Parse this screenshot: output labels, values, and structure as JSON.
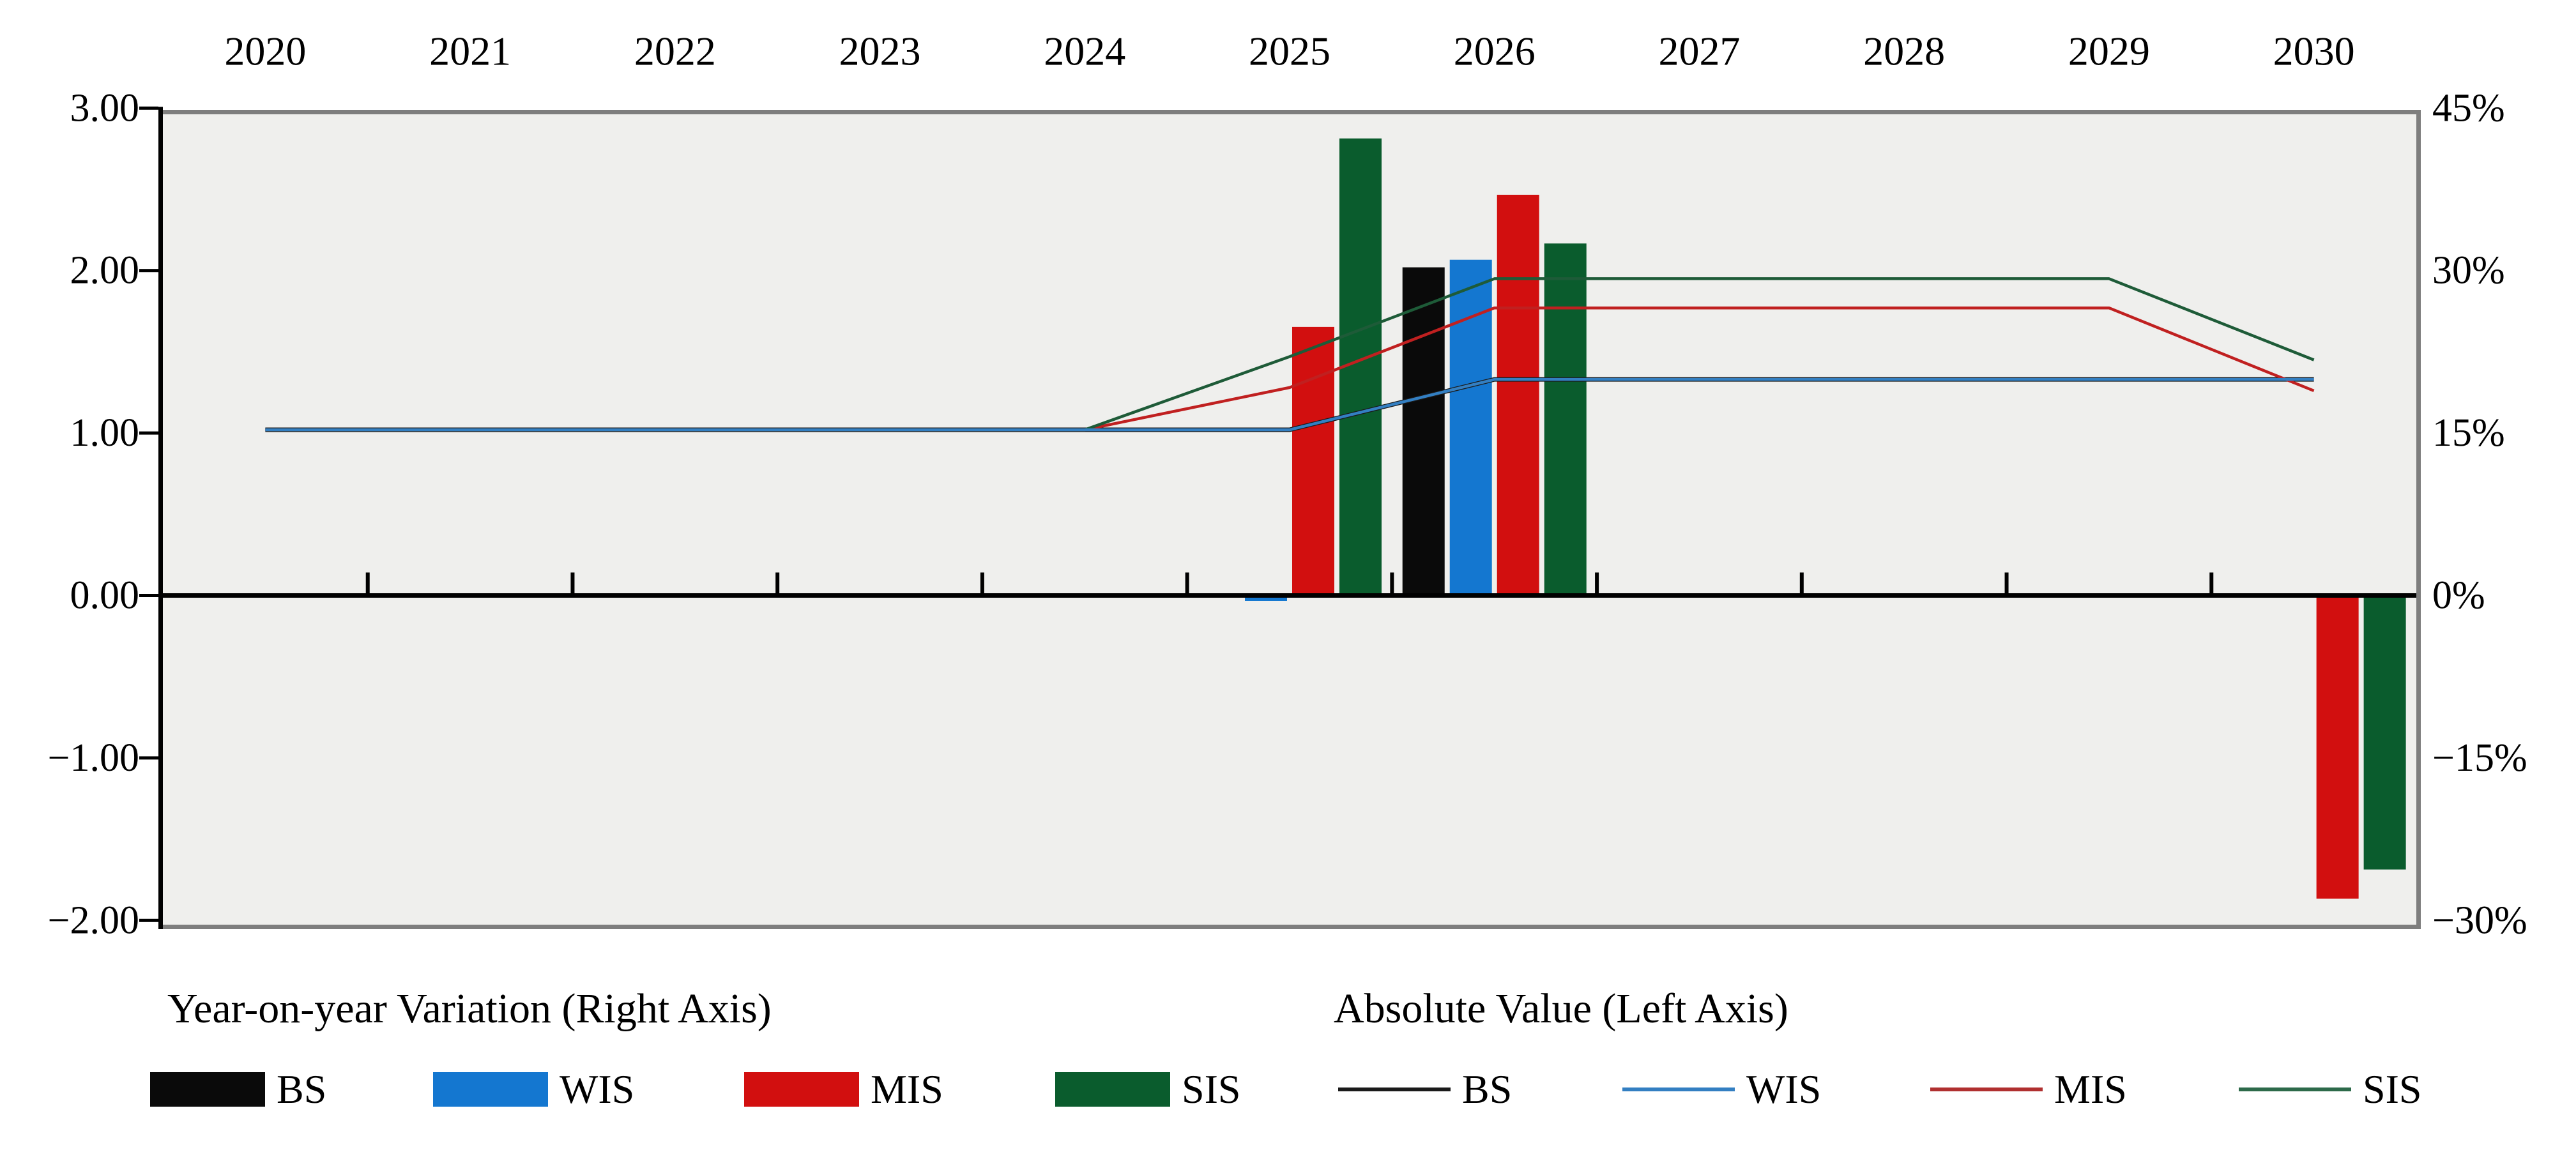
{
  "chart_data": {
    "type": "combo-bar-line-dual-axis",
    "categories": [
      "2020",
      "2021",
      "2022",
      "2023",
      "2024",
      "2025",
      "2026",
      "2027",
      "2028",
      "2029",
      "2030"
    ],
    "left_axis": {
      "title": "Absolute Value",
      "tick_labels": [
        "3.00",
        "2.00",
        "1.00",
        "0.00",
        "−1.00",
        "−2.00"
      ],
      "tick_values": [
        3,
        2,
        1,
        0,
        -1,
        -2
      ],
      "min": -2,
      "max": 3
    },
    "right_axis": {
      "title": "Year-on-year Variation",
      "tick_labels": [
        "45%",
        "30%",
        "15%",
        "0%",
        "−15%",
        "−30%"
      ],
      "tick_values": [
        45,
        30,
        15,
        0,
        -15,
        -30
      ],
      "min": -30,
      "max": 45
    },
    "x_axis": {
      "labels_position": "top",
      "zero_line": true,
      "ticks_at_slot_boundaries": true
    },
    "grid": false,
    "plot_bg": "#efefed",
    "border_color": "#7e7e7e",
    "bar_series": [
      {
        "name": "BS",
        "color": "#0a0a0a",
        "axis": "right",
        "values": [
          null,
          null,
          null,
          null,
          null,
          null,
          30.3,
          null,
          null,
          null,
          null
        ]
      },
      {
        "name": "WIS",
        "color": "#1477d0",
        "axis": "right",
        "values": [
          null,
          null,
          null,
          null,
          null,
          -0.5,
          31.0,
          null,
          null,
          null,
          null
        ]
      },
      {
        "name": "MIS",
        "color": "#d20f0f",
        "axis": "right",
        "values": [
          null,
          null,
          null,
          null,
          null,
          24.8,
          37.0,
          null,
          null,
          null,
          -28.0
        ]
      },
      {
        "name": "SIS",
        "color": "#0a5c2d",
        "axis": "right",
        "values": [
          null,
          null,
          null,
          null,
          null,
          42.2,
          32.5,
          null,
          null,
          null,
          -25.3
        ]
      }
    ],
    "line_series": [
      {
        "name": "BS",
        "color": "#1a1a1a",
        "width": 7,
        "axis": "left",
        "values": [
          1.02,
          1.02,
          1.02,
          1.02,
          1.02,
          1.02,
          1.33,
          1.33,
          1.33,
          1.33,
          1.33
        ]
      },
      {
        "name": "MIS",
        "color": "#c02020",
        "width": 4.5,
        "axis": "left",
        "values": [
          1.02,
          1.02,
          1.02,
          1.02,
          1.02,
          1.28,
          1.77,
          1.77,
          1.77,
          1.77,
          1.26
        ]
      },
      {
        "name": "SIS",
        "color": "#1e5b38",
        "width": 4.5,
        "axis": "left",
        "values": [
          1.02,
          1.02,
          1.02,
          1.02,
          1.02,
          1.47,
          1.95,
          1.95,
          1.95,
          1.95,
          1.45
        ]
      },
      {
        "name": "WIS",
        "color": "#337fc2",
        "width": 4.5,
        "axis": "left",
        "values": [
          1.02,
          1.02,
          1.02,
          1.02,
          1.02,
          1.02,
          1.33,
          1.33,
          1.33,
          1.33,
          1.33
        ]
      }
    ],
    "legend": {
      "bars": {
        "title": "Year-on-year Variation (Right Axis)",
        "items": [
          {
            "label": "BS",
            "color": "#0a0a0a"
          },
          {
            "label": "WIS",
            "color": "#1477d0"
          },
          {
            "label": "MIS",
            "color": "#d20f0f"
          },
          {
            "label": "SIS",
            "color": "#0a5c2d"
          }
        ]
      },
      "lines": {
        "title": "Absolute Value (Left Axis)",
        "items": [
          {
            "label": "BS",
            "color": "#1a1a1a"
          },
          {
            "label": "WIS",
            "color": "#337fc2"
          },
          {
            "label": "MIS",
            "color": "#b03030"
          },
          {
            "label": "SIS",
            "color": "#2d6a4a"
          }
        ]
      }
    }
  }
}
